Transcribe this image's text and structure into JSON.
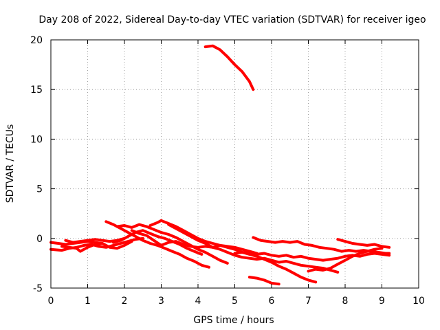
{
  "chart_data": {
    "type": "line",
    "title": "Day 208 of 2022, Sidereal Day-to-day VTEC variation (SDTVAR) for receiver igeo",
    "xlabel": "GPS time / hours",
    "ylabel": "SDTVAR / TECUs",
    "xlim": [
      0,
      10
    ],
    "ylim": [
      -5,
      20
    ],
    "xticks": [
      0,
      1,
      2,
      3,
      4,
      5,
      6,
      7,
      8,
      9,
      10
    ],
    "yticks": [
      -5,
      0,
      5,
      10,
      15,
      20
    ],
    "grid": true,
    "color": "#ff0000",
    "series": [
      {
        "name": "arc-1",
        "x": [
          0.0,
          0.2,
          0.4,
          0.6,
          0.8,
          1.0,
          1.2,
          1.4
        ],
        "y": [
          -0.4,
          -0.5,
          -0.6,
          -0.5,
          -0.4,
          -0.3,
          -0.4,
          -0.5
        ]
      },
      {
        "name": "arc-2",
        "x": [
          0.0,
          0.3,
          0.5,
          0.7,
          0.9,
          1.1,
          1.3,
          1.5,
          1.7,
          1.9,
          2.1,
          2.3,
          2.5
        ],
        "y": [
          -1.1,
          -1.2,
          -1.0,
          -0.9,
          -0.7,
          -0.6,
          -0.8,
          -0.9,
          -0.7,
          -0.5,
          -0.3,
          -0.1,
          0.0
        ]
      },
      {
        "name": "arc-3",
        "x": [
          0.3,
          0.5,
          0.7,
          0.8,
          1.0,
          1.2,
          1.4,
          1.6,
          1.8,
          2.0,
          2.2
        ],
        "y": [
          -0.8,
          -0.9,
          -1.0,
          -1.3,
          -0.9,
          -0.6,
          -0.5,
          -0.9,
          -1.0,
          -0.7,
          -0.3
        ]
      },
      {
        "name": "arc-4",
        "x": [
          0.4,
          0.6,
          0.8,
          1.0,
          1.2,
          1.4,
          1.6,
          1.8,
          2.0
        ],
        "y": [
          -0.2,
          -0.4,
          -0.3,
          -0.2,
          -0.1,
          -0.2,
          -0.3,
          -0.2,
          0.0
        ]
      },
      {
        "name": "arc-5",
        "x": [
          1.5,
          1.7,
          1.9,
          2.1,
          2.3,
          2.5,
          2.7,
          2.9,
          3.1,
          3.3,
          3.5,
          3.7,
          3.9,
          4.1,
          4.3
        ],
        "y": [
          1.7,
          1.4,
          1.0,
          0.6,
          0.2,
          -0.2,
          -0.5,
          -0.7,
          -1.0,
          -1.3,
          -1.6,
          -2.0,
          -2.3,
          -2.7,
          -2.9
        ]
      },
      {
        "name": "arc-6",
        "x": [
          1.8,
          2.0,
          2.2,
          2.4,
          2.6,
          2.8,
          3.0,
          3.2,
          3.4,
          3.6,
          3.8,
          4.0,
          4.2,
          4.4,
          4.6,
          4.8
        ],
        "y": [
          1.2,
          1.3,
          1.1,
          1.4,
          1.2,
          0.9,
          0.6,
          0.4,
          0.1,
          -0.3,
          -0.7,
          -1.1,
          -1.4,
          -1.8,
          -2.2,
          -2.5
        ]
      },
      {
        "name": "arc-7",
        "x": [
          1.7,
          1.9,
          2.1,
          2.3,
          2.5,
          2.7,
          2.9,
          3.1,
          3.3,
          3.5,
          3.7,
          3.9,
          4.1
        ],
        "y": [
          -0.4,
          -0.2,
          0.2,
          0.6,
          0.8,
          0.5,
          0.2,
          0.0,
          -0.3,
          -0.6,
          -1.0,
          -1.3,
          -1.6
        ]
      },
      {
        "name": "arc-8",
        "x": [
          2.2,
          2.4,
          2.6,
          2.8,
          3.0,
          3.2,
          3.4,
          3.6,
          3.8,
          4.0,
          4.2,
          4.4,
          4.6,
          4.8,
          5.0,
          5.2,
          5.4,
          5.6
        ],
        "y": [
          0.8,
          0.5,
          0.3,
          -0.2,
          -0.7,
          -0.4,
          -0.3,
          -0.6,
          -0.8,
          -0.9,
          -0.8,
          -0.9,
          -0.7,
          -0.8,
          -0.9,
          -1.1,
          -1.3,
          -1.5
        ]
      },
      {
        "name": "arc-9",
        "x": [
          2.7,
          2.9,
          3.0,
          3.2,
          3.4,
          3.6,
          3.8,
          4.0,
          4.2,
          4.4,
          4.6,
          4.8,
          5.0,
          5.2,
          5.4,
          5.6,
          5.8,
          6.0,
          6.2,
          6.4,
          6.6,
          6.8,
          7.0,
          7.2
        ],
        "y": [
          1.3,
          1.6,
          1.8,
          1.5,
          1.2,
          0.8,
          0.4,
          0.0,
          -0.3,
          -0.5,
          -0.7,
          -0.9,
          -1.1,
          -1.4,
          -1.6,
          -1.8,
          -2.1,
          -2.4,
          -2.8,
          -3.1,
          -3.5,
          -3.9,
          -4.2,
          -4.4
        ]
      },
      {
        "name": "arc-10",
        "x": [
          3.2,
          3.4,
          3.6,
          3.8,
          4.0,
          4.2,
          4.4,
          4.6,
          4.8,
          5.0,
          5.2,
          5.4,
          5.6,
          5.8,
          6.0,
          6.2,
          6.4,
          6.6,
          6.8,
          7.0,
          7.2,
          7.4,
          7.6,
          7.8
        ],
        "y": [
          1.4,
          1.0,
          0.6,
          0.2,
          -0.2,
          -0.5,
          -0.9,
          -1.1,
          -1.4,
          -1.7,
          -1.9,
          -2.0,
          -2.1,
          -2.0,
          -2.2,
          -2.4,
          -2.3,
          -2.5,
          -2.7,
          -2.8,
          -2.9,
          -3.0,
          -3.2,
          -3.4
        ]
      },
      {
        "name": "arc-11",
        "x": [
          4.2,
          4.4,
          4.6,
          4.8,
          5.0,
          5.2,
          5.4,
          5.5
        ],
        "y": [
          19.3,
          19.4,
          19.0,
          18.3,
          17.5,
          16.8,
          15.8,
          15.0
        ]
      },
      {
        "name": "arc-12",
        "x": [
          5.4,
          5.6,
          5.8,
          6.0,
          6.2
        ],
        "y": [
          -3.9,
          -4.0,
          -4.2,
          -4.5,
          -4.6
        ]
      },
      {
        "name": "arc-13",
        "x": [
          5.5,
          5.7,
          5.9,
          6.1,
          6.3,
          6.5,
          6.7,
          6.9,
          7.1,
          7.3,
          7.5,
          7.7,
          7.9,
          8.1,
          8.3,
          8.5,
          8.7,
          8.9,
          9.1,
          9.2
        ],
        "y": [
          0.1,
          -0.2,
          -0.3,
          -0.4,
          -0.3,
          -0.4,
          -0.3,
          -0.6,
          -0.7,
          -0.9,
          -1.0,
          -1.1,
          -1.3,
          -1.2,
          -1.3,
          -1.2,
          -1.3,
          -1.4,
          -1.5,
          -1.5
        ]
      },
      {
        "name": "arc-14",
        "x": [
          5.0,
          5.2,
          5.4,
          5.6,
          5.8,
          6.0,
          6.2,
          6.4,
          6.6,
          6.8,
          7.0,
          7.2,
          7.4,
          7.6,
          7.8,
          8.0,
          8.2,
          8.4,
          8.6,
          8.8,
          9.0,
          9.2
        ],
        "y": [
          -1.5,
          -1.4,
          -1.5,
          -1.6,
          -1.5,
          -1.7,
          -1.8,
          -1.7,
          -1.9,
          -1.8,
          -2.0,
          -2.1,
          -2.2,
          -2.1,
          -2.0,
          -1.8,
          -1.7,
          -1.8,
          -1.6,
          -1.5,
          -1.6,
          -1.7
        ]
      },
      {
        "name": "arc-15",
        "x": [
          7.0,
          7.2,
          7.4,
          7.6,
          7.8,
          8.0,
          8.2,
          8.4,
          8.6,
          8.8,
          9.0
        ],
        "y": [
          -3.3,
          -3.1,
          -3.2,
          -3.0,
          -2.6,
          -2.2,
          -1.8,
          -1.5,
          -1.3,
          -1.1,
          -1.0
        ]
      },
      {
        "name": "arc-16",
        "x": [
          7.8,
          8.0,
          8.2,
          8.4,
          8.6,
          8.8,
          9.0,
          9.2
        ],
        "y": [
          -0.1,
          -0.3,
          -0.5,
          -0.6,
          -0.7,
          -0.6,
          -0.8,
          -0.9
        ]
      }
    ]
  }
}
